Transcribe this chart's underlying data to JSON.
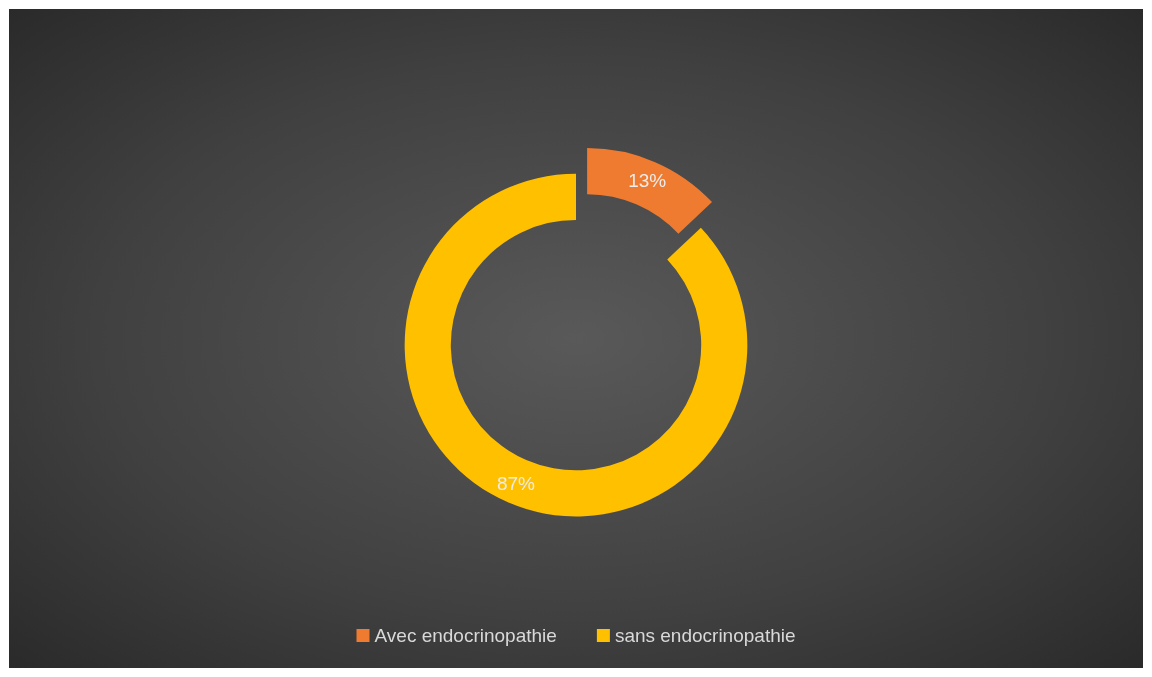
{
  "chart_data": {
    "type": "donut",
    "categories": [
      "Avec endocrinopathie",
      "sans endocrinopathie"
    ],
    "values": [
      13,
      87
    ],
    "colors": [
      "#ee7b30",
      "#ffc000"
    ],
    "value_labels": [
      "13%",
      "87%"
    ],
    "legend": "bottom"
  }
}
